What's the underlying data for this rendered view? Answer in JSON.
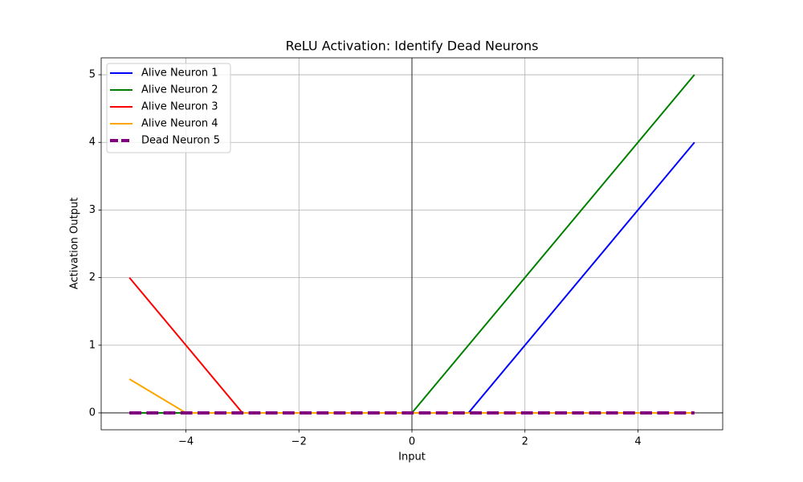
{
  "chart_data": {
    "type": "line",
    "title": "ReLU Activation: Identify Dead Neurons",
    "x_label": "Input",
    "y_label": "Activation Output",
    "x": [
      -5,
      -4,
      -3,
      0,
      1,
      5
    ],
    "series": [
      {
        "name": "Alive Neuron 1",
        "color": "blue",
        "values": [
          0,
          0,
          0,
          0,
          0,
          4
        ]
      },
      {
        "name": "Alive Neuron 2",
        "color": "green",
        "values": [
          0,
          0,
          0,
          0,
          1,
          5
        ]
      },
      {
        "name": "Alive Neuron 3",
        "color": "red",
        "values": [
          2,
          1,
          0,
          0,
          0,
          0
        ]
      },
      {
        "name": "Alive Neuron 4",
        "color": "orange",
        "values": [
          0.5,
          0,
          0,
          0,
          0,
          0
        ]
      },
      {
        "name": "Dead Neuron 5",
        "color": "purple",
        "dashed": true,
        "values": [
          0,
          0,
          0,
          0,
          0,
          0
        ]
      }
    ],
    "xlim": [
      -5.5,
      5.5
    ],
    "ylim": [
      -0.25,
      5.25
    ],
    "xticks": [
      {
        "value": -4,
        "label": "−4"
      },
      {
        "value": -2,
        "label": "−2"
      },
      0,
      2,
      4
    ],
    "yticks": [
      0,
      1,
      2,
      3,
      4,
      5
    ],
    "hlines": [
      0
    ],
    "vlines": [
      0
    ],
    "grid": true,
    "legend": "upper left"
  }
}
